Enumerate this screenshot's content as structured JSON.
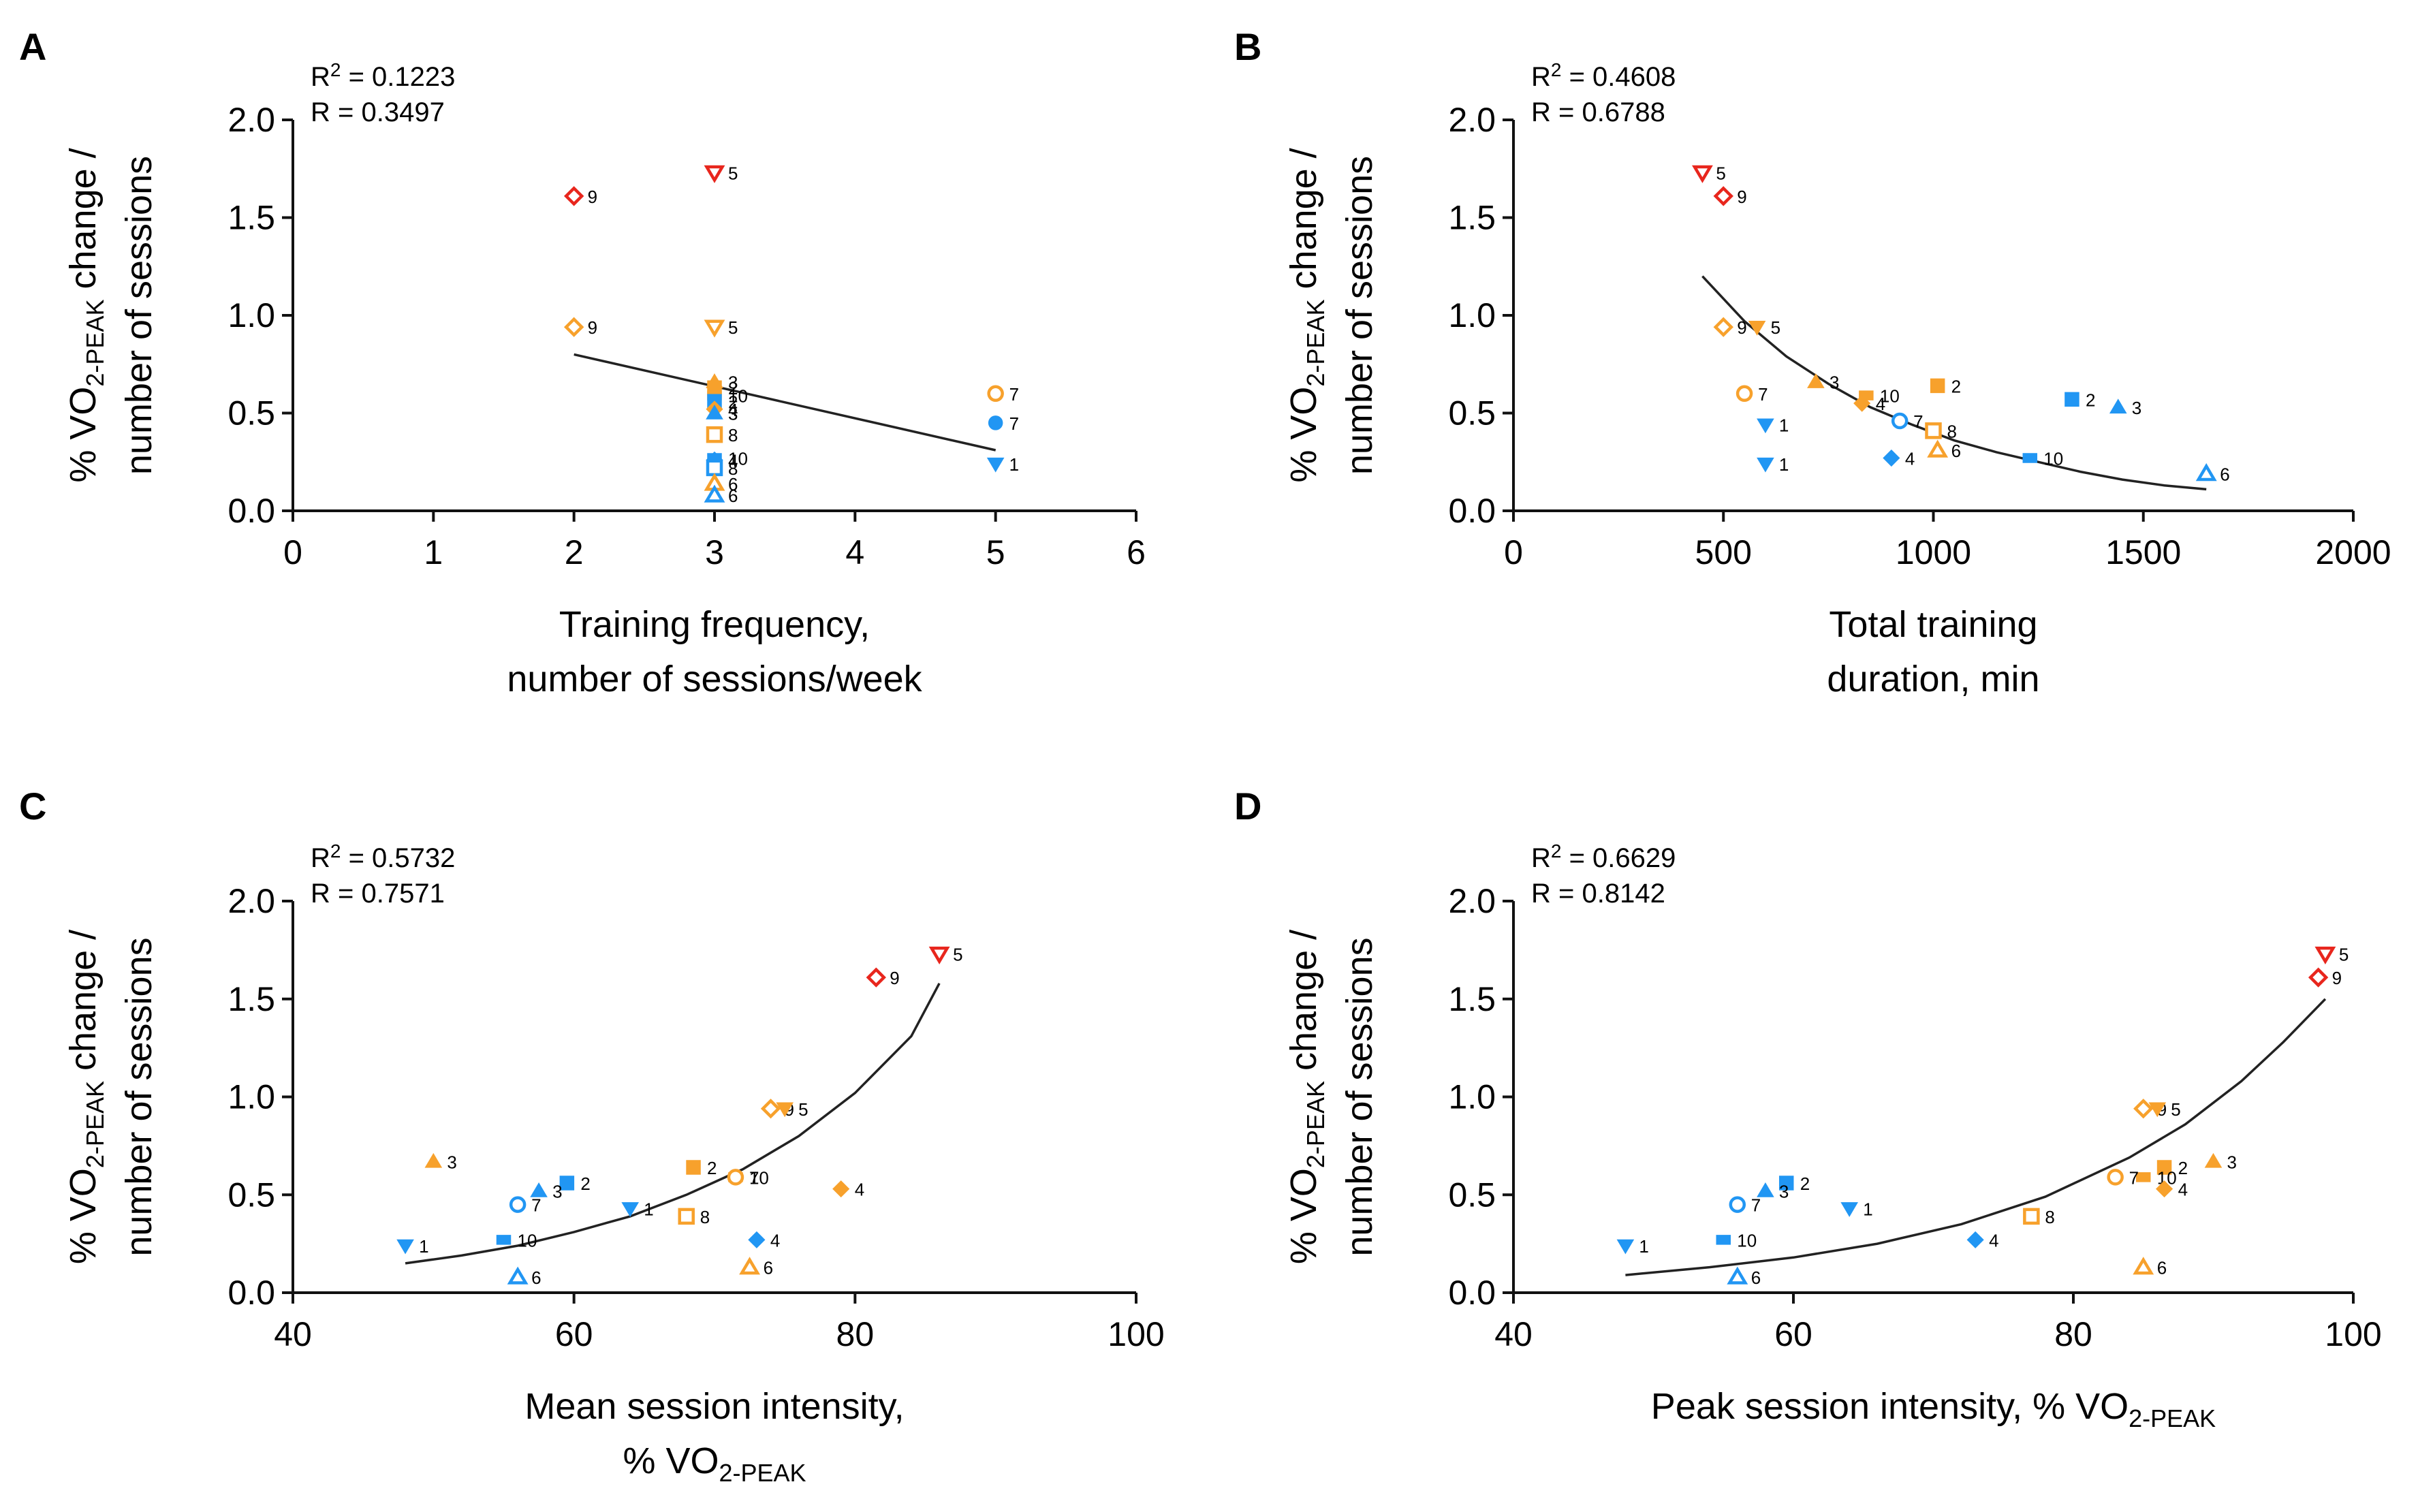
{
  "colors": {
    "blue": "#2196F3",
    "orange": "#F7A12C",
    "red": "#E8261D",
    "axis": "#111111"
  },
  "chart_data": [
    {
      "panel": "A",
      "type": "scatter",
      "fit": "linear",
      "xlabel": [
        "Training frequency,",
        "number of sessions/week"
      ],
      "ylabel": [
        "% VO2-PEAK change /",
        "number of sessions"
      ],
      "xlim": [
        0,
        6
      ],
      "ylim": [
        0,
        2
      ],
      "xticks": [
        0,
        1,
        2,
        3,
        4,
        5,
        6
      ],
      "yticks": [
        "0.0",
        "0.5",
        "1.0",
        "1.5",
        "2.0"
      ],
      "stats": {
        "r2": "R² = 0.1223",
        "r": "R = 0.3497"
      },
      "fit_line": {
        "x": [
          2,
          5
        ],
        "y": [
          0.8,
          0.31
        ]
      },
      "points": [
        {
          "x": 2,
          "y": 1.61,
          "c": "red",
          "s": "diamond",
          "f": false,
          "l": "9"
        },
        {
          "x": 3,
          "y": 1.73,
          "c": "red",
          "s": "tri-down",
          "f": false,
          "l": "5"
        },
        {
          "x": 2,
          "y": 0.94,
          "c": "orange",
          "s": "diamond",
          "f": false,
          "l": "9"
        },
        {
          "x": 3,
          "y": 0.94,
          "c": "orange",
          "s": "tri-down",
          "f": false,
          "l": "5"
        },
        {
          "x": 5,
          "y": 0.6,
          "c": "orange",
          "s": "circle",
          "f": false,
          "l": "7"
        },
        {
          "x": 5,
          "y": 0.45,
          "c": "blue",
          "s": "circle",
          "f": true,
          "l": "7"
        },
        {
          "x": 5,
          "y": 0.24,
          "c": "blue",
          "s": "tri-down",
          "f": true,
          "l": "1"
        },
        {
          "x": 3,
          "y": 0.66,
          "c": "orange",
          "s": "triangle",
          "f": true,
          "l": "3"
        },
        {
          "x": 3,
          "y": 0.63,
          "c": "orange",
          "s": "square",
          "f": true,
          "l": "2"
        },
        {
          "x": 3,
          "y": 0.59,
          "c": "orange",
          "s": "rect",
          "f": true,
          "l": "10"
        },
        {
          "x": 3,
          "y": 0.56,
          "c": "blue",
          "s": "square",
          "f": true,
          "l": "2"
        },
        {
          "x": 3,
          "y": 0.52,
          "c": "orange",
          "s": "diamond",
          "f": true,
          "l": "4"
        },
        {
          "x": 3,
          "y": 0.5,
          "c": "blue",
          "s": "triangle",
          "f": true,
          "l": "3"
        },
        {
          "x": 3,
          "y": 0.39,
          "c": "orange",
          "s": "square",
          "f": false,
          "l": "8"
        },
        {
          "x": 3,
          "y": 0.27,
          "c": "blue",
          "s": "rect",
          "f": true,
          "l": "10"
        },
        {
          "x": 3,
          "y": 0.26,
          "c": "blue",
          "s": "diamond",
          "f": true,
          "l": "4"
        },
        {
          "x": 3,
          "y": 0.22,
          "c": "blue",
          "s": "square",
          "f": false,
          "l": "8"
        },
        {
          "x": 3,
          "y": 0.14,
          "c": "orange",
          "s": "triangle",
          "f": false,
          "l": "6"
        },
        {
          "x": 3,
          "y": 0.08,
          "c": "blue",
          "s": "triangle",
          "f": false,
          "l": "6"
        }
      ]
    },
    {
      "panel": "B",
      "type": "scatter",
      "fit": "exponential decay",
      "xlabel": [
        "Total training",
        "duration, min"
      ],
      "ylabel": [
        "% VO2-PEAK change /",
        "number of sessions"
      ],
      "xlim": [
        0,
        2000
      ],
      "ylim": [
        0,
        2
      ],
      "xticks": [
        0,
        500,
        1000,
        1500,
        2000
      ],
      "yticks": [
        "0.0",
        "0.5",
        "1.0",
        "1.5",
        "2.0"
      ],
      "stats": {
        "r2": "R² = 0.4608",
        "r": "R = 0.6788"
      },
      "fit_line": {
        "x": [
          450,
          550,
          650,
          750,
          850,
          950,
          1050,
          1150,
          1250,
          1350,
          1450,
          1550,
          1650
        ],
        "y": [
          1.2,
          0.97,
          0.79,
          0.65,
          0.53,
          0.44,
          0.36,
          0.3,
          0.25,
          0.2,
          0.16,
          0.13,
          0.11
        ]
      },
      "points": [
        {
          "x": 450,
          "y": 1.73,
          "c": "red",
          "s": "tri-down",
          "f": false,
          "l": "5"
        },
        {
          "x": 500,
          "y": 1.61,
          "c": "red",
          "s": "diamond",
          "f": false,
          "l": "9"
        },
        {
          "x": 500,
          "y": 0.94,
          "c": "orange",
          "s": "diamond",
          "f": false,
          "l": "9"
        },
        {
          "x": 580,
          "y": 0.94,
          "c": "orange",
          "s": "tri-down",
          "f": true,
          "l": "5"
        },
        {
          "x": 550,
          "y": 0.6,
          "c": "orange",
          "s": "circle",
          "f": false,
          "l": "7"
        },
        {
          "x": 720,
          "y": 0.66,
          "c": "orange",
          "s": "triangle",
          "f": true,
          "l": "3"
        },
        {
          "x": 840,
          "y": 0.59,
          "c": "orange",
          "s": "rect",
          "f": true,
          "l": "10"
        },
        {
          "x": 830,
          "y": 0.55,
          "c": "orange",
          "s": "diamond",
          "f": true,
          "l": "4"
        },
        {
          "x": 1010,
          "y": 0.64,
          "c": "orange",
          "s": "square",
          "f": true,
          "l": "2"
        },
        {
          "x": 1330,
          "y": 0.57,
          "c": "blue",
          "s": "square",
          "f": true,
          "l": "2"
        },
        {
          "x": 1440,
          "y": 0.53,
          "c": "blue",
          "s": "triangle",
          "f": true,
          "l": "3"
        },
        {
          "x": 920,
          "y": 0.46,
          "c": "blue",
          "s": "circle",
          "f": false,
          "l": "7"
        },
        {
          "x": 1000,
          "y": 0.41,
          "c": "orange",
          "s": "square",
          "f": false,
          "l": "8"
        },
        {
          "x": 600,
          "y": 0.44,
          "c": "blue",
          "s": "tri-down",
          "f": true,
          "l": "1"
        },
        {
          "x": 600,
          "y": 0.24,
          "c": "blue",
          "s": "tri-down",
          "f": true,
          "l": "1"
        },
        {
          "x": 900,
          "y": 0.27,
          "c": "blue",
          "s": "diamond",
          "f": true,
          "l": "4"
        },
        {
          "x": 1010,
          "y": 0.31,
          "c": "orange",
          "s": "triangle",
          "f": false,
          "l": "6"
        },
        {
          "x": 1230,
          "y": 0.27,
          "c": "blue",
          "s": "rect",
          "f": true,
          "l": "10"
        },
        {
          "x": 1650,
          "y": 0.19,
          "c": "blue",
          "s": "triangle",
          "f": false,
          "l": "6"
        }
      ]
    },
    {
      "panel": "C",
      "type": "scatter",
      "fit": "exponential growth",
      "xlabel": [
        "Mean session intensity,",
        "% VO2-PEAK"
      ],
      "ylabel": [
        "% VO2-PEAK change /",
        "number of sessions"
      ],
      "xlim": [
        40,
        100
      ],
      "ylim": [
        0,
        2
      ],
      "xticks": [
        40,
        60,
        80,
        100
      ],
      "yticks": [
        "0.0",
        "0.5",
        "1.0",
        "1.5",
        "2.0"
      ],
      "stats": {
        "r2": "R² = 0.5732",
        "r": "R = 0.7571"
      },
      "fit_line": {
        "x": [
          48,
          52,
          56,
          60,
          64,
          68,
          72,
          76,
          80,
          84,
          86
        ],
        "y": [
          0.15,
          0.19,
          0.24,
          0.31,
          0.39,
          0.5,
          0.63,
          0.8,
          1.02,
          1.31,
          1.58
        ]
      },
      "points": [
        {
          "x": 86,
          "y": 1.73,
          "c": "red",
          "s": "tri-down",
          "f": false,
          "l": "5"
        },
        {
          "x": 81.5,
          "y": 1.61,
          "c": "red",
          "s": "diamond",
          "f": false,
          "l": "9"
        },
        {
          "x": 74,
          "y": 0.94,
          "c": "orange",
          "s": "diamond",
          "f": false,
          "l": "9"
        },
        {
          "x": 75,
          "y": 0.94,
          "c": "orange",
          "s": "tri-down",
          "f": true,
          "l": "5"
        },
        {
          "x": 50,
          "y": 0.67,
          "c": "orange",
          "s": "triangle",
          "f": true,
          "l": "3"
        },
        {
          "x": 68.5,
          "y": 0.64,
          "c": "orange",
          "s": "square",
          "f": true,
          "l": "2"
        },
        {
          "x": 71.5,
          "y": 0.59,
          "c": "orange",
          "s": "rect",
          "f": true,
          "l": "10"
        },
        {
          "x": 71.5,
          "y": 0.59,
          "c": "orange",
          "s": "circle",
          "f": false,
          "l": "7"
        },
        {
          "x": 79,
          "y": 0.53,
          "c": "orange",
          "s": "diamond",
          "f": true,
          "l": "4"
        },
        {
          "x": 59.5,
          "y": 0.56,
          "c": "blue",
          "s": "square",
          "f": true,
          "l": "2"
        },
        {
          "x": 57.5,
          "y": 0.52,
          "c": "blue",
          "s": "triangle",
          "f": true,
          "l": "3"
        },
        {
          "x": 56,
          "y": 0.45,
          "c": "blue",
          "s": "circle",
          "f": false,
          "l": "7"
        },
        {
          "x": 64,
          "y": 0.43,
          "c": "blue",
          "s": "tri-down",
          "f": true,
          "l": "1"
        },
        {
          "x": 68,
          "y": 0.39,
          "c": "orange",
          "s": "square",
          "f": false,
          "l": "8"
        },
        {
          "x": 55,
          "y": 0.27,
          "c": "blue",
          "s": "rect",
          "f": true,
          "l": "10"
        },
        {
          "x": 73,
          "y": 0.27,
          "c": "blue",
          "s": "diamond",
          "f": true,
          "l": "4"
        },
        {
          "x": 48,
          "y": 0.24,
          "c": "blue",
          "s": "tri-down",
          "f": true,
          "l": "1"
        },
        {
          "x": 72.5,
          "y": 0.13,
          "c": "orange",
          "s": "triangle",
          "f": false,
          "l": "6"
        },
        {
          "x": 56,
          "y": 0.08,
          "c": "blue",
          "s": "triangle",
          "f": false,
          "l": "6"
        }
      ]
    },
    {
      "panel": "D",
      "type": "scatter",
      "fit": "exponential growth",
      "xlabel": [
        "Peak session intensity, % VO2-PEAK"
      ],
      "ylabel": [
        "% VO2-PEAK change /",
        "number of sessions"
      ],
      "xlim": [
        40,
        100
      ],
      "ylim": [
        0,
        2
      ],
      "xticks": [
        40,
        60,
        80,
        100
      ],
      "yticks": [
        "0.0",
        "0.5",
        "1.0",
        "1.5",
        "2.0"
      ],
      "stats": {
        "r2": "R² = 0.6629",
        "r": "R = 0.8142"
      },
      "fit_line": {
        "x": [
          48,
          54,
          60,
          66,
          72,
          78,
          84,
          88,
          92,
          95,
          98
        ],
        "y": [
          0.09,
          0.13,
          0.18,
          0.25,
          0.35,
          0.49,
          0.69,
          0.86,
          1.08,
          1.28,
          1.5
        ]
      },
      "points": [
        {
          "x": 98,
          "y": 1.73,
          "c": "red",
          "s": "tri-down",
          "f": false,
          "l": "5"
        },
        {
          "x": 97.5,
          "y": 1.61,
          "c": "red",
          "s": "diamond",
          "f": false,
          "l": "9"
        },
        {
          "x": 85,
          "y": 0.94,
          "c": "orange",
          "s": "diamond",
          "f": false,
          "l": "9"
        },
        {
          "x": 86,
          "y": 0.94,
          "c": "orange",
          "s": "tri-down",
          "f": true,
          "l": "5"
        },
        {
          "x": 90,
          "y": 0.67,
          "c": "orange",
          "s": "triangle",
          "f": true,
          "l": "3"
        },
        {
          "x": 86.5,
          "y": 0.64,
          "c": "orange",
          "s": "square",
          "f": true,
          "l": "2"
        },
        {
          "x": 85,
          "y": 0.59,
          "c": "orange",
          "s": "rect",
          "f": true,
          "l": "10"
        },
        {
          "x": 83,
          "y": 0.59,
          "c": "orange",
          "s": "circle",
          "f": false,
          "l": "7"
        },
        {
          "x": 86.5,
          "y": 0.53,
          "c": "orange",
          "s": "diamond",
          "f": true,
          "l": "4"
        },
        {
          "x": 59.5,
          "y": 0.56,
          "c": "blue",
          "s": "square",
          "f": true,
          "l": "2"
        },
        {
          "x": 58,
          "y": 0.52,
          "c": "blue",
          "s": "triangle",
          "f": true,
          "l": "3"
        },
        {
          "x": 56,
          "y": 0.45,
          "c": "blue",
          "s": "circle",
          "f": false,
          "l": "7"
        },
        {
          "x": 64,
          "y": 0.43,
          "c": "blue",
          "s": "tri-down",
          "f": true,
          "l": "1"
        },
        {
          "x": 77,
          "y": 0.39,
          "c": "orange",
          "s": "square",
          "f": false,
          "l": "8"
        },
        {
          "x": 55,
          "y": 0.27,
          "c": "blue",
          "s": "rect",
          "f": true,
          "l": "10"
        },
        {
          "x": 73,
          "y": 0.27,
          "c": "blue",
          "s": "diamond",
          "f": true,
          "l": "4"
        },
        {
          "x": 48,
          "y": 0.24,
          "c": "blue",
          "s": "tri-down",
          "f": true,
          "l": "1"
        },
        {
          "x": 85,
          "y": 0.13,
          "c": "orange",
          "s": "triangle",
          "f": false,
          "l": "6"
        },
        {
          "x": 56,
          "y": 0.08,
          "c": "blue",
          "s": "triangle",
          "f": false,
          "l": "6"
        }
      ]
    }
  ]
}
